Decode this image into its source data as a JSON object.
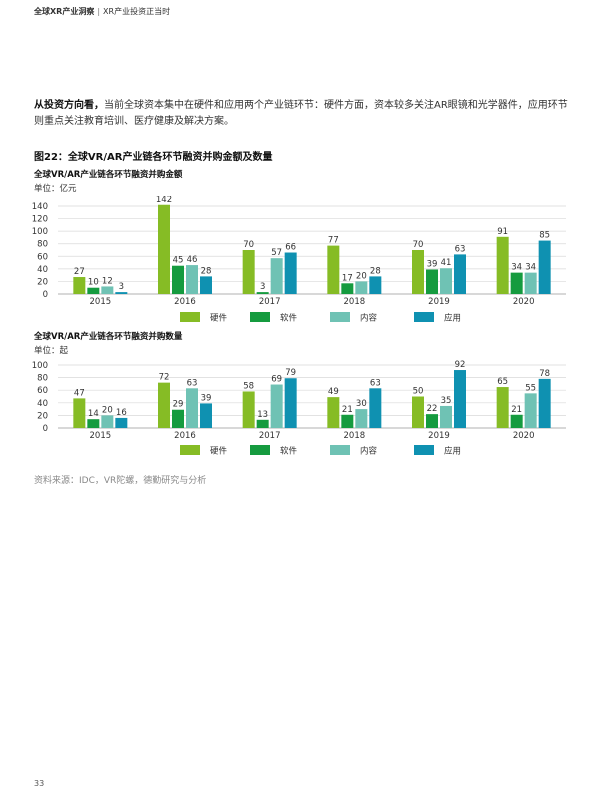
{
  "header": {
    "bold": "全球XR产业洞察",
    "separator": "|",
    "rest": "XR产业投资正当时"
  },
  "paragraph": {
    "lead": "从投资方向看，",
    "body": "当前全球资本集中在硬件和应用两个产业链环节：硬件方面，资本较多关注AR眼镜和光学器件，应用环节则重点关注教育培训、医疗健康及解决方案。"
  },
  "figure_title": "图22：全球VR/AR产业链各环节融资并购金额及数量",
  "source": "资料来源：IDC，VR陀螺，德勤研究与分析",
  "page_number": "33",
  "colors": {
    "硬件": "#86bc25",
    "软件": "#159b3f",
    "内容": "#6fc2b4",
    "应用": "#0f91b1",
    "grid": "#d9d9d9",
    "axis": "#999999"
  },
  "chart_data": [
    {
      "type": "bar",
      "title": "全球VR/AR产业链各环节融资并购金额",
      "unit": "单位：亿元",
      "categories": [
        "2015",
        "2016",
        "2017",
        "2018",
        "2019",
        "2020"
      ],
      "yticks": [
        "0",
        "20",
        "40",
        "60",
        "80",
        "100",
        "120",
        "140"
      ],
      "ylim": [
        0,
        140
      ],
      "grid": true,
      "legend_position": "bottom",
      "series": [
        {
          "name": "硬件",
          "values": [
            27,
            142,
            70,
            77,
            70,
            91
          ]
        },
        {
          "name": "软件",
          "values": [
            10,
            45,
            3,
            17,
            39,
            34
          ]
        },
        {
          "name": "内容",
          "values": [
            12,
            46,
            57,
            20,
            41,
            34
          ]
        },
        {
          "name": "应用",
          "values": [
            3,
            28,
            66,
            28,
            63,
            85
          ]
        }
      ]
    },
    {
      "type": "bar",
      "title": "全球VR/AR产业链各环节融资并购数量",
      "unit": "单位：起",
      "categories": [
        "2015",
        "2016",
        "2017",
        "2018",
        "2019",
        "2020"
      ],
      "yticks": [
        "0",
        "20",
        "40",
        "60",
        "80",
        "100"
      ],
      "ylim": [
        0,
        100
      ],
      "grid": true,
      "legend_position": "bottom",
      "series": [
        {
          "name": "硬件",
          "values": [
            47,
            72,
            58,
            49,
            50,
            65
          ]
        },
        {
          "name": "软件",
          "values": [
            14,
            29,
            13,
            21,
            22,
            21
          ]
        },
        {
          "name": "内容",
          "values": [
            20,
            63,
            69,
            30,
            35,
            55
          ]
        },
        {
          "name": "应用",
          "values": [
            16,
            39,
            79,
            63,
            92,
            78
          ]
        }
      ]
    }
  ]
}
